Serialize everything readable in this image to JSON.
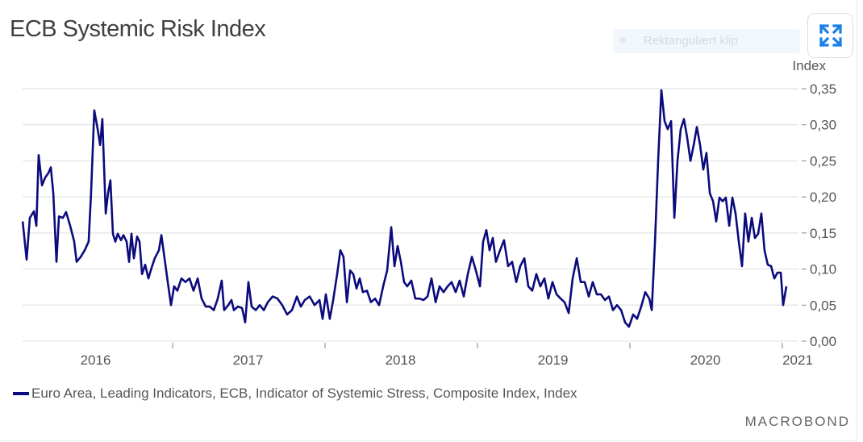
{
  "title": "ECB Systemic Risk Index",
  "overlay": {
    "clip_label": "Rektangulært klip"
  },
  "icons": {
    "expand": "expand-arrows-icon"
  },
  "brand": "MACROBOND",
  "chart_data": {
    "type": "line",
    "title": "ECB Systemic Risk Index",
    "xlabel": "",
    "ylabel": "Index",
    "xlim": [
      2016.0,
      2021.1
    ],
    "ylim": [
      0,
      0.35
    ],
    "yticks": [
      0,
      0.05,
      0.1,
      0.15,
      0.2,
      0.25,
      0.3,
      0.35
    ],
    "ytick_labels": [
      "0,00",
      "0,05",
      "0,10",
      "0,15",
      "0,20",
      "0,25",
      "0,30",
      "0,35"
    ],
    "xtick_labels": [
      "2016",
      "2017",
      "2018",
      "2019",
      "2020",
      "2021"
    ],
    "grid": true,
    "legend_position": "bottom-left",
    "colors": {
      "series": "#0b0b7d",
      "grid": "#e3e3e3"
    },
    "series": [
      {
        "name": "Euro Area, Leading Indicators, ECB, Indicator of Systemic Stress, Composite Index, Index",
        "points": [
          [
            2016.011,
            0.166
          ],
          [
            2016.037,
            0.113
          ],
          [
            2016.058,
            0.171
          ],
          [
            2016.085,
            0.18
          ],
          [
            2016.101,
            0.16
          ],
          [
            2016.116,
            0.258
          ],
          [
            2016.138,
            0.216
          ],
          [
            2016.159,
            0.227
          ],
          [
            2016.18,
            0.233
          ],
          [
            2016.196,
            0.241
          ],
          [
            2016.212,
            0.205
          ],
          [
            2016.233,
            0.11
          ],
          [
            2016.249,
            0.173
          ],
          [
            2016.275,
            0.171
          ],
          [
            2016.296,
            0.179
          ],
          [
            2016.323,
            0.16
          ],
          [
            2016.349,
            0.138
          ],
          [
            2016.365,
            0.11
          ],
          [
            2016.392,
            0.117
          ],
          [
            2016.418,
            0.126
          ],
          [
            2016.444,
            0.138
          ],
          [
            2016.46,
            0.205
          ],
          [
            2016.481,
            0.32
          ],
          [
            2016.503,
            0.294
          ],
          [
            2016.519,
            0.272
          ],
          [
            2016.534,
            0.308
          ],
          [
            2016.556,
            0.177
          ],
          [
            2016.571,
            0.205
          ],
          [
            2016.587,
            0.223
          ],
          [
            2016.603,
            0.149
          ],
          [
            2016.619,
            0.138
          ],
          [
            2016.635,
            0.149
          ],
          [
            2016.656,
            0.14
          ],
          [
            2016.672,
            0.147
          ],
          [
            2016.693,
            0.138
          ],
          [
            2016.709,
            0.11
          ],
          [
            2016.725,
            0.149
          ],
          [
            2016.741,
            0.115
          ],
          [
            2016.762,
            0.145
          ],
          [
            2016.778,
            0.138
          ],
          [
            2016.794,
            0.093
          ],
          [
            2016.815,
            0.106
          ],
          [
            2016.836,
            0.087
          ],
          [
            2016.857,
            0.102
          ],
          [
            2016.878,
            0.115
          ],
          [
            2016.905,
            0.126
          ],
          [
            2016.921,
            0.147
          ],
          [
            2016.942,
            0.115
          ],
          [
            2016.963,
            0.082
          ],
          [
            2016.984,
            0.05
          ],
          [
            2017.005,
            0.076
          ],
          [
            2017.026,
            0.07
          ],
          [
            2017.053,
            0.087
          ],
          [
            2017.079,
            0.082
          ],
          [
            2017.106,
            0.087
          ],
          [
            2017.132,
            0.07
          ],
          [
            2017.159,
            0.087
          ],
          [
            2017.185,
            0.059
          ],
          [
            2017.212,
            0.048
          ],
          [
            2017.238,
            0.048
          ],
          [
            2017.265,
            0.043
          ],
          [
            2017.291,
            0.059
          ],
          [
            2017.317,
            0.084
          ],
          [
            2017.333,
            0.043
          ],
          [
            2017.36,
            0.05
          ],
          [
            2017.381,
            0.057
          ],
          [
            2017.397,
            0.043
          ],
          [
            2017.423,
            0.048
          ],
          [
            2017.45,
            0.046
          ],
          [
            2017.471,
            0.026
          ],
          [
            2017.492,
            0.082
          ],
          [
            2017.513,
            0.048
          ],
          [
            2017.54,
            0.043
          ],
          [
            2017.566,
            0.05
          ],
          [
            2017.593,
            0.043
          ],
          [
            2017.619,
            0.054
          ],
          [
            2017.651,
            0.062
          ],
          [
            2017.683,
            0.059
          ],
          [
            2017.714,
            0.05
          ],
          [
            2017.746,
            0.037
          ],
          [
            2017.778,
            0.043
          ],
          [
            2017.81,
            0.062
          ],
          [
            2017.836,
            0.048
          ],
          [
            2017.862,
            0.057
          ],
          [
            2017.894,
            0.062
          ],
          [
            2017.926,
            0.05
          ],
          [
            2017.958,
            0.057
          ],
          [
            2017.979,
            0.031
          ],
          [
            2018.0,
            0.065
          ],
          [
            2018.026,
            0.031
          ],
          [
            2018.048,
            0.057
          ],
          [
            2018.074,
            0.093
          ],
          [
            2018.095,
            0.126
          ],
          [
            2018.116,
            0.117
          ],
          [
            2018.138,
            0.054
          ],
          [
            2018.159,
            0.098
          ],
          [
            2018.18,
            0.093
          ],
          [
            2018.201,
            0.073
          ],
          [
            2018.222,
            0.087
          ],
          [
            2018.243,
            0.068
          ],
          [
            2018.27,
            0.07
          ],
          [
            2018.296,
            0.054
          ],
          [
            2018.323,
            0.059
          ],
          [
            2018.349,
            0.05
          ],
          [
            2018.376,
            0.076
          ],
          [
            2018.402,
            0.098
          ],
          [
            2018.429,
            0.158
          ],
          [
            2018.45,
            0.104
          ],
          [
            2018.471,
            0.132
          ],
          [
            2018.492,
            0.11
          ],
          [
            2018.513,
            0.082
          ],
          [
            2018.534,
            0.076
          ],
          [
            2018.561,
            0.084
          ],
          [
            2018.587,
            0.059
          ],
          [
            2018.614,
            0.059
          ],
          [
            2018.64,
            0.057
          ],
          [
            2018.667,
            0.062
          ],
          [
            2018.693,
            0.087
          ],
          [
            2018.72,
            0.054
          ],
          [
            2018.746,
            0.076
          ],
          [
            2018.772,
            0.068
          ],
          [
            2018.799,
            0.076
          ],
          [
            2018.825,
            0.082
          ],
          [
            2018.852,
            0.068
          ],
          [
            2018.878,
            0.084
          ],
          [
            2018.905,
            0.062
          ],
          [
            2018.931,
            0.093
          ],
          [
            2018.958,
            0.117
          ],
          [
            2018.984,
            0.098
          ],
          [
            2019.011,
            0.076
          ],
          [
            2019.032,
            0.138
          ],
          [
            2019.053,
            0.154
          ],
          [
            2019.074,
            0.126
          ],
          [
            2019.095,
            0.143
          ],
          [
            2019.116,
            0.11
          ],
          [
            2019.143,
            0.126
          ],
          [
            2019.169,
            0.14
          ],
          [
            2019.196,
            0.104
          ],
          [
            2019.222,
            0.11
          ],
          [
            2019.249,
            0.082
          ],
          [
            2019.275,
            0.104
          ],
          [
            2019.302,
            0.115
          ],
          [
            2019.328,
            0.076
          ],
          [
            2019.354,
            0.07
          ],
          [
            2019.381,
            0.093
          ],
          [
            2019.407,
            0.076
          ],
          [
            2019.434,
            0.087
          ],
          [
            2019.46,
            0.059
          ],
          [
            2019.487,
            0.082
          ],
          [
            2019.513,
            0.065
          ],
          [
            2019.54,
            0.059
          ],
          [
            2019.566,
            0.054
          ],
          [
            2019.593,
            0.039
          ],
          [
            2019.619,
            0.087
          ],
          [
            2019.646,
            0.115
          ],
          [
            2019.672,
            0.082
          ],
          [
            2019.698,
            0.082
          ],
          [
            2019.725,
            0.062
          ],
          [
            2019.751,
            0.082
          ],
          [
            2019.778,
            0.065
          ],
          [
            2019.804,
            0.065
          ],
          [
            2019.831,
            0.057
          ],
          [
            2019.857,
            0.062
          ],
          [
            2019.884,
            0.043
          ],
          [
            2019.91,
            0.05
          ],
          [
            2019.937,
            0.043
          ],
          [
            2019.963,
            0.026
          ],
          [
            2019.989,
            0.02
          ],
          [
            2020.016,
            0.037
          ],
          [
            2020.042,
            0.031
          ],
          [
            2020.069,
            0.048
          ],
          [
            2020.095,
            0.068
          ],
          [
            2020.122,
            0.059
          ],
          [
            2020.138,
            0.043
          ],
          [
            2020.159,
            0.138
          ],
          [
            2020.18,
            0.25
          ],
          [
            2020.201,
            0.348
          ],
          [
            2020.222,
            0.305
          ],
          [
            2020.243,
            0.294
          ],
          [
            2020.265,
            0.305
          ],
          [
            2020.286,
            0.171
          ],
          [
            2020.307,
            0.25
          ],
          [
            2020.328,
            0.294
          ],
          [
            2020.349,
            0.308
          ],
          [
            2020.37,
            0.283
          ],
          [
            2020.392,
            0.25
          ],
          [
            2020.413,
            0.272
          ],
          [
            2020.434,
            0.297
          ],
          [
            2020.455,
            0.272
          ],
          [
            2020.476,
            0.238
          ],
          [
            2020.497,
            0.261
          ],
          [
            2020.519,
            0.205
          ],
          [
            2020.54,
            0.194
          ],
          [
            2020.561,
            0.166
          ],
          [
            2020.582,
            0.199
          ],
          [
            2020.603,
            0.194
          ],
          [
            2020.624,
            0.199
          ],
          [
            2020.646,
            0.16
          ],
          [
            2020.667,
            0.199
          ],
          [
            2020.688,
            0.177
          ],
          [
            2020.709,
            0.138
          ],
          [
            2020.73,
            0.104
          ],
          [
            2020.751,
            0.177
          ],
          [
            2020.772,
            0.138
          ],
          [
            2020.794,
            0.171
          ],
          [
            2020.815,
            0.143
          ],
          [
            2020.836,
            0.149
          ],
          [
            2020.857,
            0.177
          ],
          [
            2020.878,
            0.126
          ],
          [
            2020.899,
            0.106
          ],
          [
            2020.921,
            0.104
          ],
          [
            2020.942,
            0.087
          ],
          [
            2020.963,
            0.095
          ],
          [
            2020.984,
            0.095
          ],
          [
            2021.0,
            0.05
          ],
          [
            2021.021,
            0.076
          ]
        ]
      }
    ]
  }
}
